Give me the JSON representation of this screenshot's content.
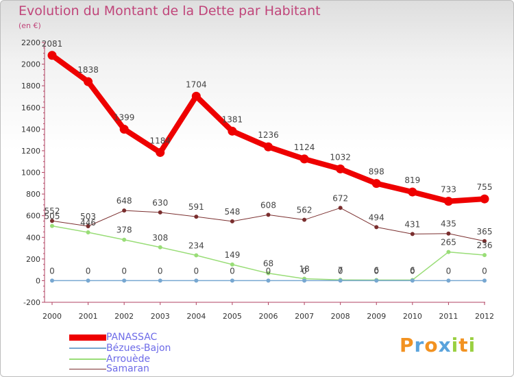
{
  "title": "Evolution du Montant de la Dette par Habitant",
  "subtitle": "(en €)",
  "chart_data": {
    "type": "line",
    "title": "Evolution du Montant de la Dette par Habitant",
    "ylabel": "(en €)",
    "ylim": [
      -200,
      2200
    ],
    "yticks": [
      -200,
      0,
      200,
      400,
      600,
      800,
      1000,
      1200,
      1400,
      1600,
      1800,
      2000,
      2200
    ],
    "x": [
      "2000",
      "2001",
      "2002",
      "2003",
      "2004",
      "2005",
      "2006",
      "2007",
      "2008",
      "2009",
      "2010",
      "2011",
      "2012"
    ],
    "grid": false,
    "legend_position": "bottom-left",
    "series": [
      {
        "name": "PANASSAC",
        "color": "#ee0000",
        "values": [
          2081,
          1838,
          1399,
          1184,
          1704,
          1381,
          1236,
          1124,
          1032,
          898,
          819,
          733,
          755
        ]
      },
      {
        "name": "Bézues-Bajon",
        "color": "#77a7d1",
        "values": [
          0,
          0,
          0,
          0,
          0,
          0,
          0,
          0,
          0,
          0,
          0,
          0,
          0
        ]
      },
      {
        "name": "Arrouède",
        "color": "#99dd77",
        "values": [
          505,
          446,
          378,
          308,
          234,
          149,
          68,
          18,
          7,
          6,
          6,
          265,
          236
        ]
      },
      {
        "name": "Samaran",
        "color": "#7a2e2e",
        "values": [
          552,
          503,
          648,
          630,
          591,
          548,
          608,
          562,
          672,
          494,
          431,
          435,
          365
        ]
      }
    ]
  },
  "logo": {
    "text": "Proxiti",
    "colors": [
      "#f29221",
      "#5aa3dc",
      "#f29221",
      "#5aa3dc",
      "#9ad041",
      "#f29221",
      "#9ad041"
    ]
  }
}
